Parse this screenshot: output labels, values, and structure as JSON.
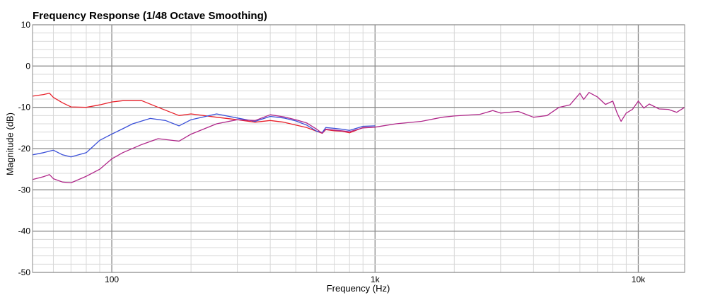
{
  "chart_data": {
    "type": "line",
    "title": "Frequency Response (1/48 Octave Smoothing)",
    "xlabel": "Frequency (Hz)",
    "ylabel": "Magnitude (dB)",
    "x_scale": "log",
    "xlim": [
      50,
      15000
    ],
    "ylim": [
      -50,
      10
    ],
    "x_ticks": [
      {
        "value": 100,
        "label": "100"
      },
      {
        "value": 1000,
        "label": "1k"
      },
      {
        "value": 10000,
        "label": "10k"
      }
    ],
    "y_ticks": [
      {
        "value": 10,
        "label": "10"
      },
      {
        "value": 0,
        "label": "0"
      },
      {
        "value": -10,
        "label": "-10"
      },
      {
        "value": -20,
        "label": "-20"
      },
      {
        "value": -30,
        "label": "-30"
      },
      {
        "value": -40,
        "label": "-40"
      },
      {
        "value": -50,
        "label": "-50"
      }
    ],
    "grid": true,
    "series": [
      {
        "color": "#e8202a",
        "x": [
          50,
          55,
          58,
          60,
          65,
          70,
          80,
          90,
          100,
          110,
          130,
          150,
          180,
          200,
          250,
          300,
          350,
          400,
          450,
          500,
          550,
          600,
          630,
          650,
          700,
          750,
          800,
          900,
          1000
        ],
        "y": [
          -7.3,
          -6.9,
          -6.6,
          -7.6,
          -8.9,
          -9.9,
          -10.0,
          -9.4,
          -8.7,
          -8.4,
          -8.4,
          -10.0,
          -12.0,
          -11.6,
          -12.4,
          -13.0,
          -13.6,
          -13.2,
          -13.6,
          -14.3,
          -14.9,
          -15.8,
          -16.3,
          -15.4,
          -15.7,
          -15.8,
          -16.2,
          -14.9,
          -14.8
        ]
      },
      {
        "color": "#3a4fd8",
        "x": [
          50,
          55,
          60,
          65,
          70,
          80,
          90,
          100,
          110,
          120,
          140,
          160,
          180,
          200,
          250,
          300,
          350,
          400,
          450,
          500,
          550,
          600,
          630,
          650,
          700,
          750,
          800,
          900,
          1000
        ],
        "y": [
          -21.5,
          -21.0,
          -20.4,
          -21.5,
          -22.0,
          -21.0,
          -18.0,
          -16.5,
          -15.2,
          -14.0,
          -12.7,
          -13.2,
          -14.5,
          -13.0,
          -11.6,
          -12.6,
          -13.4,
          -12.2,
          -12.6,
          -13.3,
          -14.3,
          -15.8,
          -16.1,
          -14.9,
          -15.1,
          -15.3,
          -15.6,
          -14.6,
          -14.5
        ]
      },
      {
        "color": "#b0288a",
        "x": [
          50,
          55,
          58,
          60,
          65,
          70,
          80,
          90,
          100,
          110,
          130,
          150,
          180,
          200,
          250,
          300,
          350,
          400,
          450,
          500,
          550,
          600,
          630,
          650,
          700,
          750,
          800,
          900,
          1000,
          1200,
          1500,
          1800,
          2000,
          2500,
          2800,
          3000,
          3500,
          4000,
          4500,
          5000,
          5500,
          6000,
          6200,
          6500,
          7000,
          7500,
          8000,
          8300,
          8600,
          9000,
          9500,
          10000,
          10500,
          11000,
          12000,
          13000,
          14000,
          15000
        ],
        "y": [
          -27.5,
          -26.8,
          -26.3,
          -27.3,
          -28.1,
          -28.3,
          -26.7,
          -25.0,
          -22.5,
          -21.0,
          -19.0,
          -17.6,
          -18.2,
          -16.5,
          -14.0,
          -13.0,
          -13.2,
          -11.8,
          -12.3,
          -13.0,
          -13.8,
          -15.3,
          -16.3,
          -15.3,
          -15.5,
          -15.7,
          -15.9,
          -15.0,
          -14.8,
          -14.0,
          -13.4,
          -12.4,
          -12.1,
          -11.7,
          -10.8,
          -11.4,
          -11.0,
          -12.4,
          -12.0,
          -10.0,
          -9.4,
          -6.6,
          -8.1,
          -6.4,
          -7.5,
          -9.3,
          -8.5,
          -11.3,
          -13.4,
          -11.4,
          -10.5,
          -8.5,
          -10.2,
          -9.2,
          -10.4,
          -10.5,
          -11.2,
          -10.0
        ]
      }
    ]
  }
}
